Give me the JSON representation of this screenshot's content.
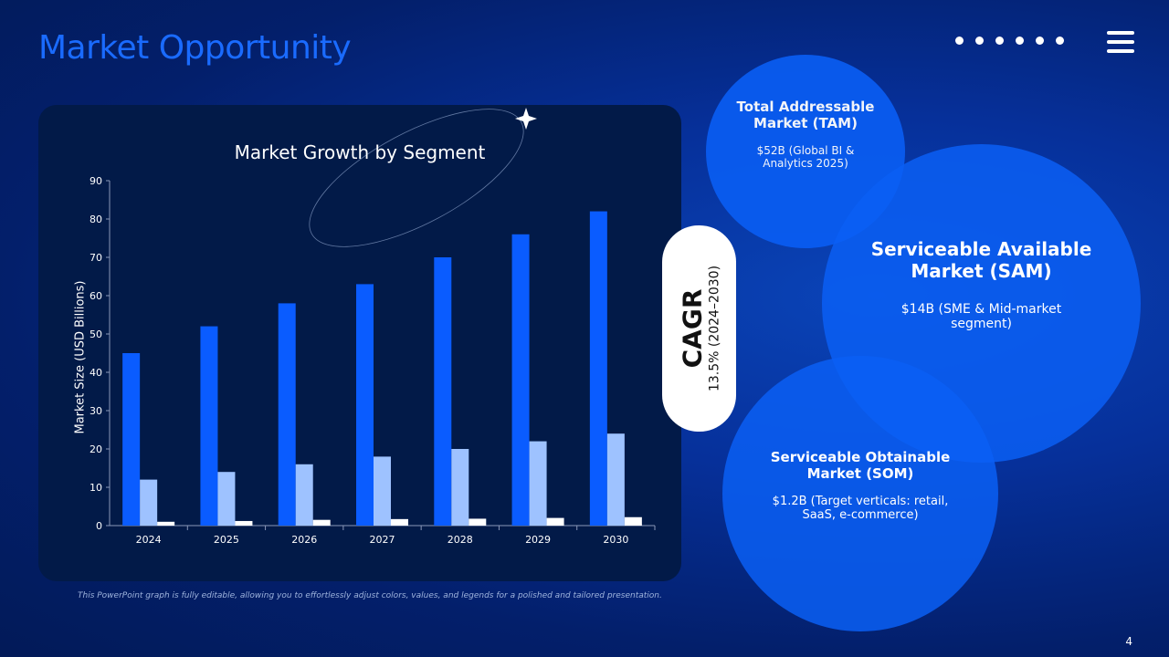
{
  "slide": {
    "title": "Market Opportunity",
    "page_number": "4",
    "caption": "This PowerPoint graph is fully editable, allowing you to effortlessly adjust colors, values, and legends for a polished and tailored presentation."
  },
  "cagr": {
    "label": "CAGR",
    "value": "13.5% (2024–2030)"
  },
  "circles": {
    "tam": {
      "title": "Total Addressable Market (TAM)",
      "text": "$52B (Global BI & Analytics 2025)"
    },
    "sam": {
      "title": "Serviceable Available Market (SAM)",
      "text": "$14B (SME & Mid-market segment)"
    },
    "som": {
      "title": "Serviceable Obtainable Market (SOM)",
      "text": "$1.2B (Target verticals: retail, SaaS, e-commerce)"
    }
  },
  "colors": {
    "series1": "#0a5cff",
    "series2": "#9ec2ff",
    "series3": "#ffffff",
    "title": "#1a6bff"
  },
  "chart_data": {
    "type": "bar",
    "title": "Market Growth by Segment",
    "xlabel": "",
    "ylabel": "Market Size (USD Billions)",
    "ylim": [
      0,
      90
    ],
    "yticks": [
      0,
      10,
      20,
      30,
      40,
      50,
      60,
      70,
      80,
      90
    ],
    "grid": false,
    "categories": [
      "2024",
      "2025",
      "2026",
      "2027",
      "2028",
      "2029",
      "2030"
    ],
    "series": [
      {
        "values": [
          45,
          52,
          58,
          63,
          70,
          76,
          82
        ]
      },
      {
        "values": [
          12,
          14,
          16,
          18,
          20,
          22,
          24
        ]
      },
      {
        "values": [
          1.0,
          1.2,
          1.5,
          1.7,
          1.8,
          2.0,
          2.2
        ]
      }
    ]
  }
}
